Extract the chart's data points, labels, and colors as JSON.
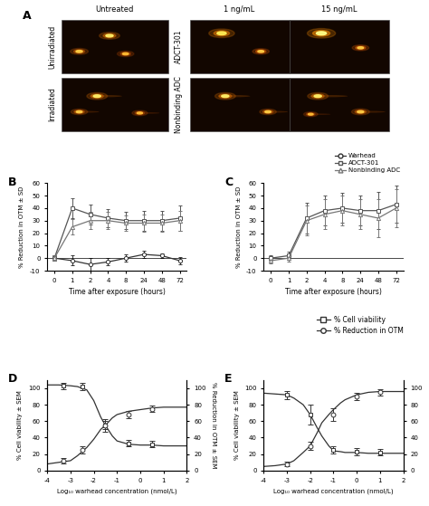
{
  "panel_A": {
    "col_labels": [
      "Untreated",
      "1 ng/mL",
      "15 ng/mL"
    ],
    "row_labels_left": [
      "Unirradiated",
      "Irradiated"
    ],
    "row_labels_right": [
      "ADCT-301",
      "Nonbinding ADC"
    ]
  },
  "panel_B": {
    "xlabel": "Time after exposure (hours)",
    "ylabel": "% Reduction in OTM ± SD",
    "ylim": [
      -10,
      60
    ],
    "yticks": [
      -10,
      0,
      10,
      20,
      30,
      40,
      50,
      60
    ],
    "time_labels": [
      "0",
      "1",
      "2",
      "4",
      "8",
      "24",
      "48",
      "72"
    ],
    "warhead": [
      0,
      -2,
      -5,
      -3,
      0,
      3,
      2,
      -2
    ],
    "warhead_err": [
      2,
      4,
      5,
      3,
      3,
      3,
      2,
      3
    ],
    "adct301": [
      0,
      40,
      35,
      32,
      30,
      30,
      30,
      32
    ],
    "adct301_err": [
      2,
      8,
      8,
      7,
      7,
      8,
      8,
      10
    ],
    "nonbinding": [
      0,
      25,
      30,
      30,
      28,
      28,
      28,
      30
    ],
    "nonbinding_err": [
      2,
      6,
      7,
      7,
      6,
      7,
      7,
      8
    ]
  },
  "panel_C": {
    "xlabel": "Time after exposure (hours)",
    "ylabel": "% Reduction in OTM ± SD",
    "ylim": [
      -10,
      60
    ],
    "yticks": [
      -10,
      0,
      10,
      20,
      30,
      40,
      50,
      60
    ],
    "time_labels": [
      "0",
      "1",
      "2",
      "4",
      "8",
      "24",
      "48",
      "72"
    ],
    "adct301": [
      0,
      2,
      32,
      38,
      40,
      38,
      38,
      43
    ],
    "adct301_err": [
      2,
      3,
      12,
      12,
      12,
      12,
      15,
      15
    ],
    "nonbinding": [
      -2,
      0,
      30,
      35,
      38,
      35,
      32,
      40
    ],
    "nonbinding_err": [
      2,
      3,
      12,
      12,
      12,
      12,
      15,
      15
    ]
  },
  "legend_BC": {
    "warhead_label": "Warhead",
    "adct301_label": "ADCT-301",
    "nonbinding_label": "Nonbinding ADC"
  },
  "legend_DE": {
    "viability_label": "% Cell viability",
    "otm_label": "% Reduction in OTM"
  },
  "panel_D": {
    "xlabel": "Log₁₀ warhead concentration (nmol/L)",
    "ylabel_left": "% Cell viability ± SEM",
    "ylabel_right": "% Reduction in OTM ± SEM",
    "xlim": [
      -4,
      2
    ],
    "ylim": [
      0,
      110
    ],
    "yticks": [
      0,
      20,
      40,
      60,
      80,
      100
    ],
    "xticks": [
      -4,
      -3,
      -2,
      -1,
      0,
      1,
      2
    ],
    "viability_x": [
      -3.3,
      -2.5,
      -1.5,
      -0.5,
      0.5
    ],
    "viability_y": [
      103,
      102,
      55,
      33,
      32
    ],
    "viability_err": [
      4,
      4,
      8,
      4,
      4
    ],
    "otm_x": [
      -3.3,
      -2.5,
      -1.5,
      -0.5,
      0.5
    ],
    "otm_y": [
      12,
      25,
      55,
      68,
      75
    ],
    "otm_err": [
      3,
      4,
      5,
      4,
      4
    ],
    "viab_curve_x": [
      -4,
      -3.8,
      -3.5,
      -3,
      -2.7,
      -2.3,
      -2,
      -1.7,
      -1.5,
      -1.2,
      -1,
      -0.5,
      0,
      0.5,
      1,
      2
    ],
    "viab_curve_y": [
      104,
      104,
      104,
      103,
      102,
      98,
      85,
      65,
      55,
      42,
      36,
      32,
      31,
      31,
      30,
      30
    ],
    "otm_curve_x": [
      -4,
      -3.5,
      -3,
      -2.7,
      -2.3,
      -2,
      -1.7,
      -1.5,
      -1.2,
      -1,
      -0.5,
      0,
      0.5,
      1,
      2
    ],
    "otm_curve_y": [
      8,
      10,
      12,
      18,
      28,
      38,
      50,
      55,
      64,
      68,
      72,
      74,
      76,
      77,
      77
    ]
  },
  "panel_E": {
    "xlabel": "Log₁₀ warhead concentration (nmol/L)",
    "ylabel_left": "% Cell viability ± SEM",
    "ylabel_right": "% Reduction in OTM ± SEM",
    "xlim": [
      -4,
      2
    ],
    "ylim": [
      0,
      110
    ],
    "yticks": [
      0,
      20,
      40,
      60,
      80,
      100
    ],
    "xticks": [
      -4,
      -3,
      -2,
      -1,
      0,
      1,
      2
    ],
    "viability_x": [
      -3,
      -2,
      -1,
      0,
      1
    ],
    "viability_y": [
      92,
      68,
      25,
      23,
      22
    ],
    "viability_err": [
      5,
      12,
      4,
      4,
      4
    ],
    "otm_x": [
      -3,
      -2,
      -1,
      0,
      1
    ],
    "otm_y": [
      8,
      30,
      68,
      90,
      95
    ],
    "otm_err": [
      3,
      5,
      8,
      4,
      4
    ],
    "viab_curve_x": [
      -4,
      -3.5,
      -3,
      -2.7,
      -2.3,
      -2,
      -1.7,
      -1.5,
      -1.2,
      -1,
      -0.7,
      -0.5,
      0,
      0.5,
      1,
      2
    ],
    "viab_curve_y": [
      94,
      93,
      92,
      88,
      80,
      68,
      52,
      42,
      30,
      24,
      23,
      22,
      22,
      21,
      21,
      21
    ],
    "otm_curve_x": [
      -4,
      -3.5,
      -3,
      -2.7,
      -2.3,
      -2,
      -1.7,
      -1.5,
      -1.2,
      -1,
      -0.7,
      -0.5,
      0,
      0.5,
      1,
      2
    ],
    "otm_curve_y": [
      5,
      6,
      8,
      12,
      22,
      30,
      46,
      58,
      68,
      74,
      82,
      86,
      92,
      95,
      96,
      96
    ]
  }
}
